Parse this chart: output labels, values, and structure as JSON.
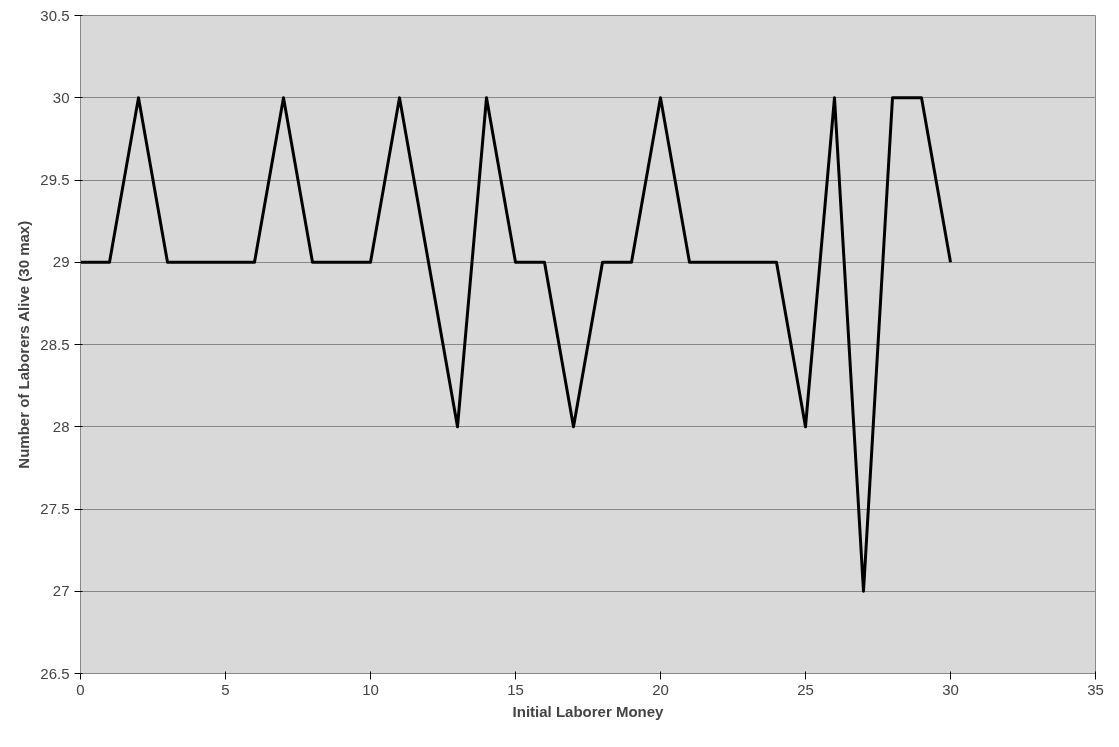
{
  "chart_data": {
    "type": "line",
    "xlabel": "Initial Laborer Money",
    "ylabel": "Number of Laborers Alive (30 max)",
    "x": [
      0,
      1,
      2,
      3,
      4,
      5,
      6,
      7,
      8,
      9,
      10,
      11,
      12,
      13,
      14,
      15,
      16,
      17,
      18,
      19,
      20,
      21,
      22,
      23,
      24,
      25,
      26,
      27,
      28,
      29,
      30
    ],
    "series": [
      {
        "color": "#000000",
        "values": [
          29,
          29,
          30,
          29,
          29,
          29,
          29,
          30,
          29,
          29,
          29,
          30,
          29,
          28,
          30,
          29,
          29,
          28,
          29,
          29,
          30,
          29,
          29,
          29,
          29,
          28,
          30,
          27,
          30,
          30,
          29
        ]
      }
    ],
    "xlim": [
      0,
      35
    ],
    "xticks": [
      0,
      5,
      10,
      15,
      20,
      25,
      30,
      35
    ],
    "ylim": [
      26.5,
      30.5
    ],
    "yticks": [
      26.5,
      27,
      27.5,
      28,
      28.5,
      29,
      29.5,
      30,
      30.5
    ],
    "grid": "y",
    "marker": "none",
    "line_style": "solid"
  }
}
